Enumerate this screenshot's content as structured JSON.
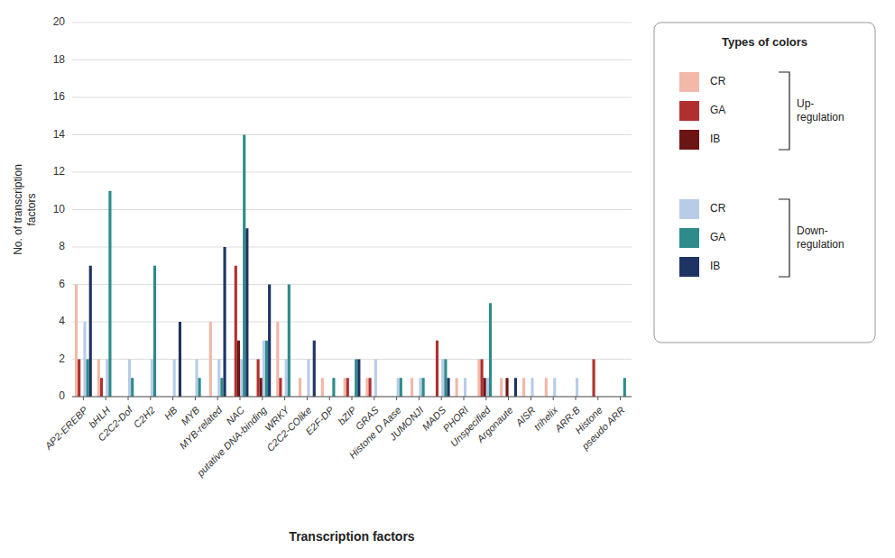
{
  "chart_data": {
    "type": "bar",
    "categories": [
      "AP2-EREBP",
      "bHLH",
      "C2C2-Dof",
      "C2H2",
      "HB",
      "MYB",
      "MYB-related",
      "NAC",
      "putative DNA-binding",
      "WRKY",
      "C2C2-COlike",
      "E2F-DP",
      "bZIP",
      "GRAS",
      "Histone D Aase",
      "JUMONJI",
      "MADS",
      "PHORl",
      "Unspecified",
      "Argonaute",
      "AlSR",
      "trihelix",
      "ARR-B",
      "Histone",
      "pseudo ARR"
    ],
    "series": [
      {
        "name": "CR",
        "color": "#f2b8a8",
        "values": [
          6,
          2,
          0,
          0,
          0,
          0,
          4,
          0,
          0,
          4,
          1,
          1,
          1,
          1,
          0,
          1,
          0,
          1,
          2,
          1,
          1,
          1,
          0,
          0,
          0
        ]
      },
      {
        "name": "GA",
        "color": "#b03030",
        "values": [
          2,
          1,
          0,
          0,
          0,
          0,
          0,
          7,
          2,
          1,
          0,
          0,
          1,
          1,
          0,
          0,
          3,
          0,
          2,
          0,
          0,
          0,
          0,
          2,
          0
        ]
      },
      {
        "name": "IB",
        "color": "#6b1515",
        "values": [
          0,
          0,
          0,
          0,
          0,
          0,
          0,
          3,
          1,
          0,
          0,
          0,
          0,
          0,
          0,
          0,
          0,
          0,
          1,
          1,
          0,
          0,
          0,
          0,
          0
        ]
      },
      {
        "name": "CR",
        "color": "#b8cce8",
        "values": [
          4,
          2,
          2,
          2,
          2,
          2,
          2,
          2,
          3,
          2,
          2,
          0,
          0,
          2,
          1,
          1,
          2,
          1,
          1,
          0,
          1,
          1,
          1,
          0,
          0
        ]
      },
      {
        "name": "GA",
        "color": "#2e8b8b",
        "values": [
          2,
          11,
          1,
          7,
          0,
          1,
          1,
          14,
          3,
          6,
          0,
          1,
          2,
          0,
          1,
          1,
          2,
          0,
          5,
          0,
          0,
          0,
          0,
          0,
          1
        ]
      },
      {
        "name": "IB",
        "color": "#1e3464",
        "values": [
          7,
          0,
          0,
          0,
          4,
          0,
          8,
          9,
          6,
          0,
          3,
          0,
          2,
          0,
          0,
          0,
          1,
          0,
          0,
          1,
          0,
          0,
          0,
          0,
          0
        ]
      }
    ],
    "xlabel": "Transcription factors",
    "ylabel": "No. of transcription\nfactors",
    "ylim": [
      0,
      20
    ],
    "yticks": [
      0,
      2,
      4,
      6,
      8,
      10,
      12,
      14,
      16,
      18,
      20
    ],
    "grid": true,
    "legend": "right",
    "legend_title": "Types of colors",
    "legend_groups": [
      "Up-\nregulation",
      "Down-\nregulation"
    ]
  }
}
